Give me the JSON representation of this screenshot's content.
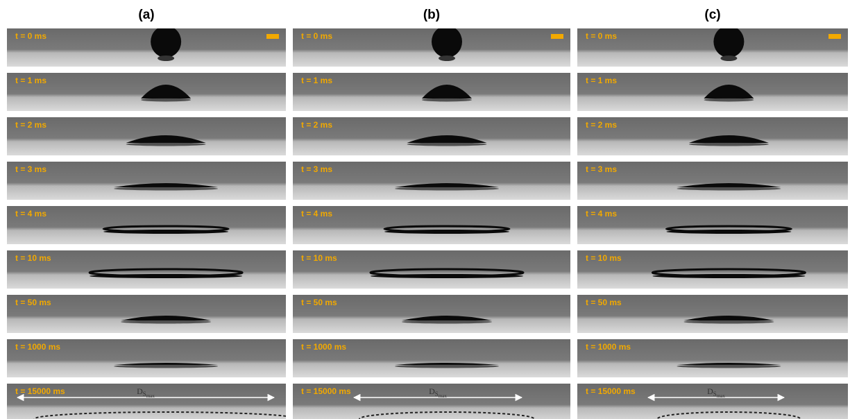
{
  "panels": [
    {
      "label": "(a)",
      "times": [
        "t = 0 ms",
        "t = 1 ms",
        "t = 2 ms",
        "t = 3 ms",
        "t = 4 ms",
        "t = 10 ms",
        "t = 50 ms",
        "t = 1000 ms",
        "t = 15000 ms"
      ],
      "dimension": {
        "symbol": "D",
        "subscript": "S",
        "sub_subscript": "max"
      }
    },
    {
      "label": "(b)",
      "times": [
        "t = 0 ms",
        "t = 1 ms",
        "t = 2 ms",
        "t = 3 ms",
        "t = 4 ms",
        "t = 10 ms",
        "t = 50 ms",
        "t = 1000 ms",
        "t = 15000 ms"
      ],
      "dimension": {
        "symbol": "D",
        "subscript": "S",
        "sub_subscript": "max"
      }
    },
    {
      "label": "(c)",
      "times": [
        "t = 0 ms",
        "t = 1 ms",
        "t = 2 ms",
        "t = 3 ms",
        "t = 4 ms",
        "t = 10 ms",
        "t = 50 ms",
        "t = 1000 ms",
        "t = 15000 ms"
      ],
      "dimension": {
        "symbol": "D",
        "subscript": "S",
        "sub_subscript": "max"
      }
    }
  ]
}
